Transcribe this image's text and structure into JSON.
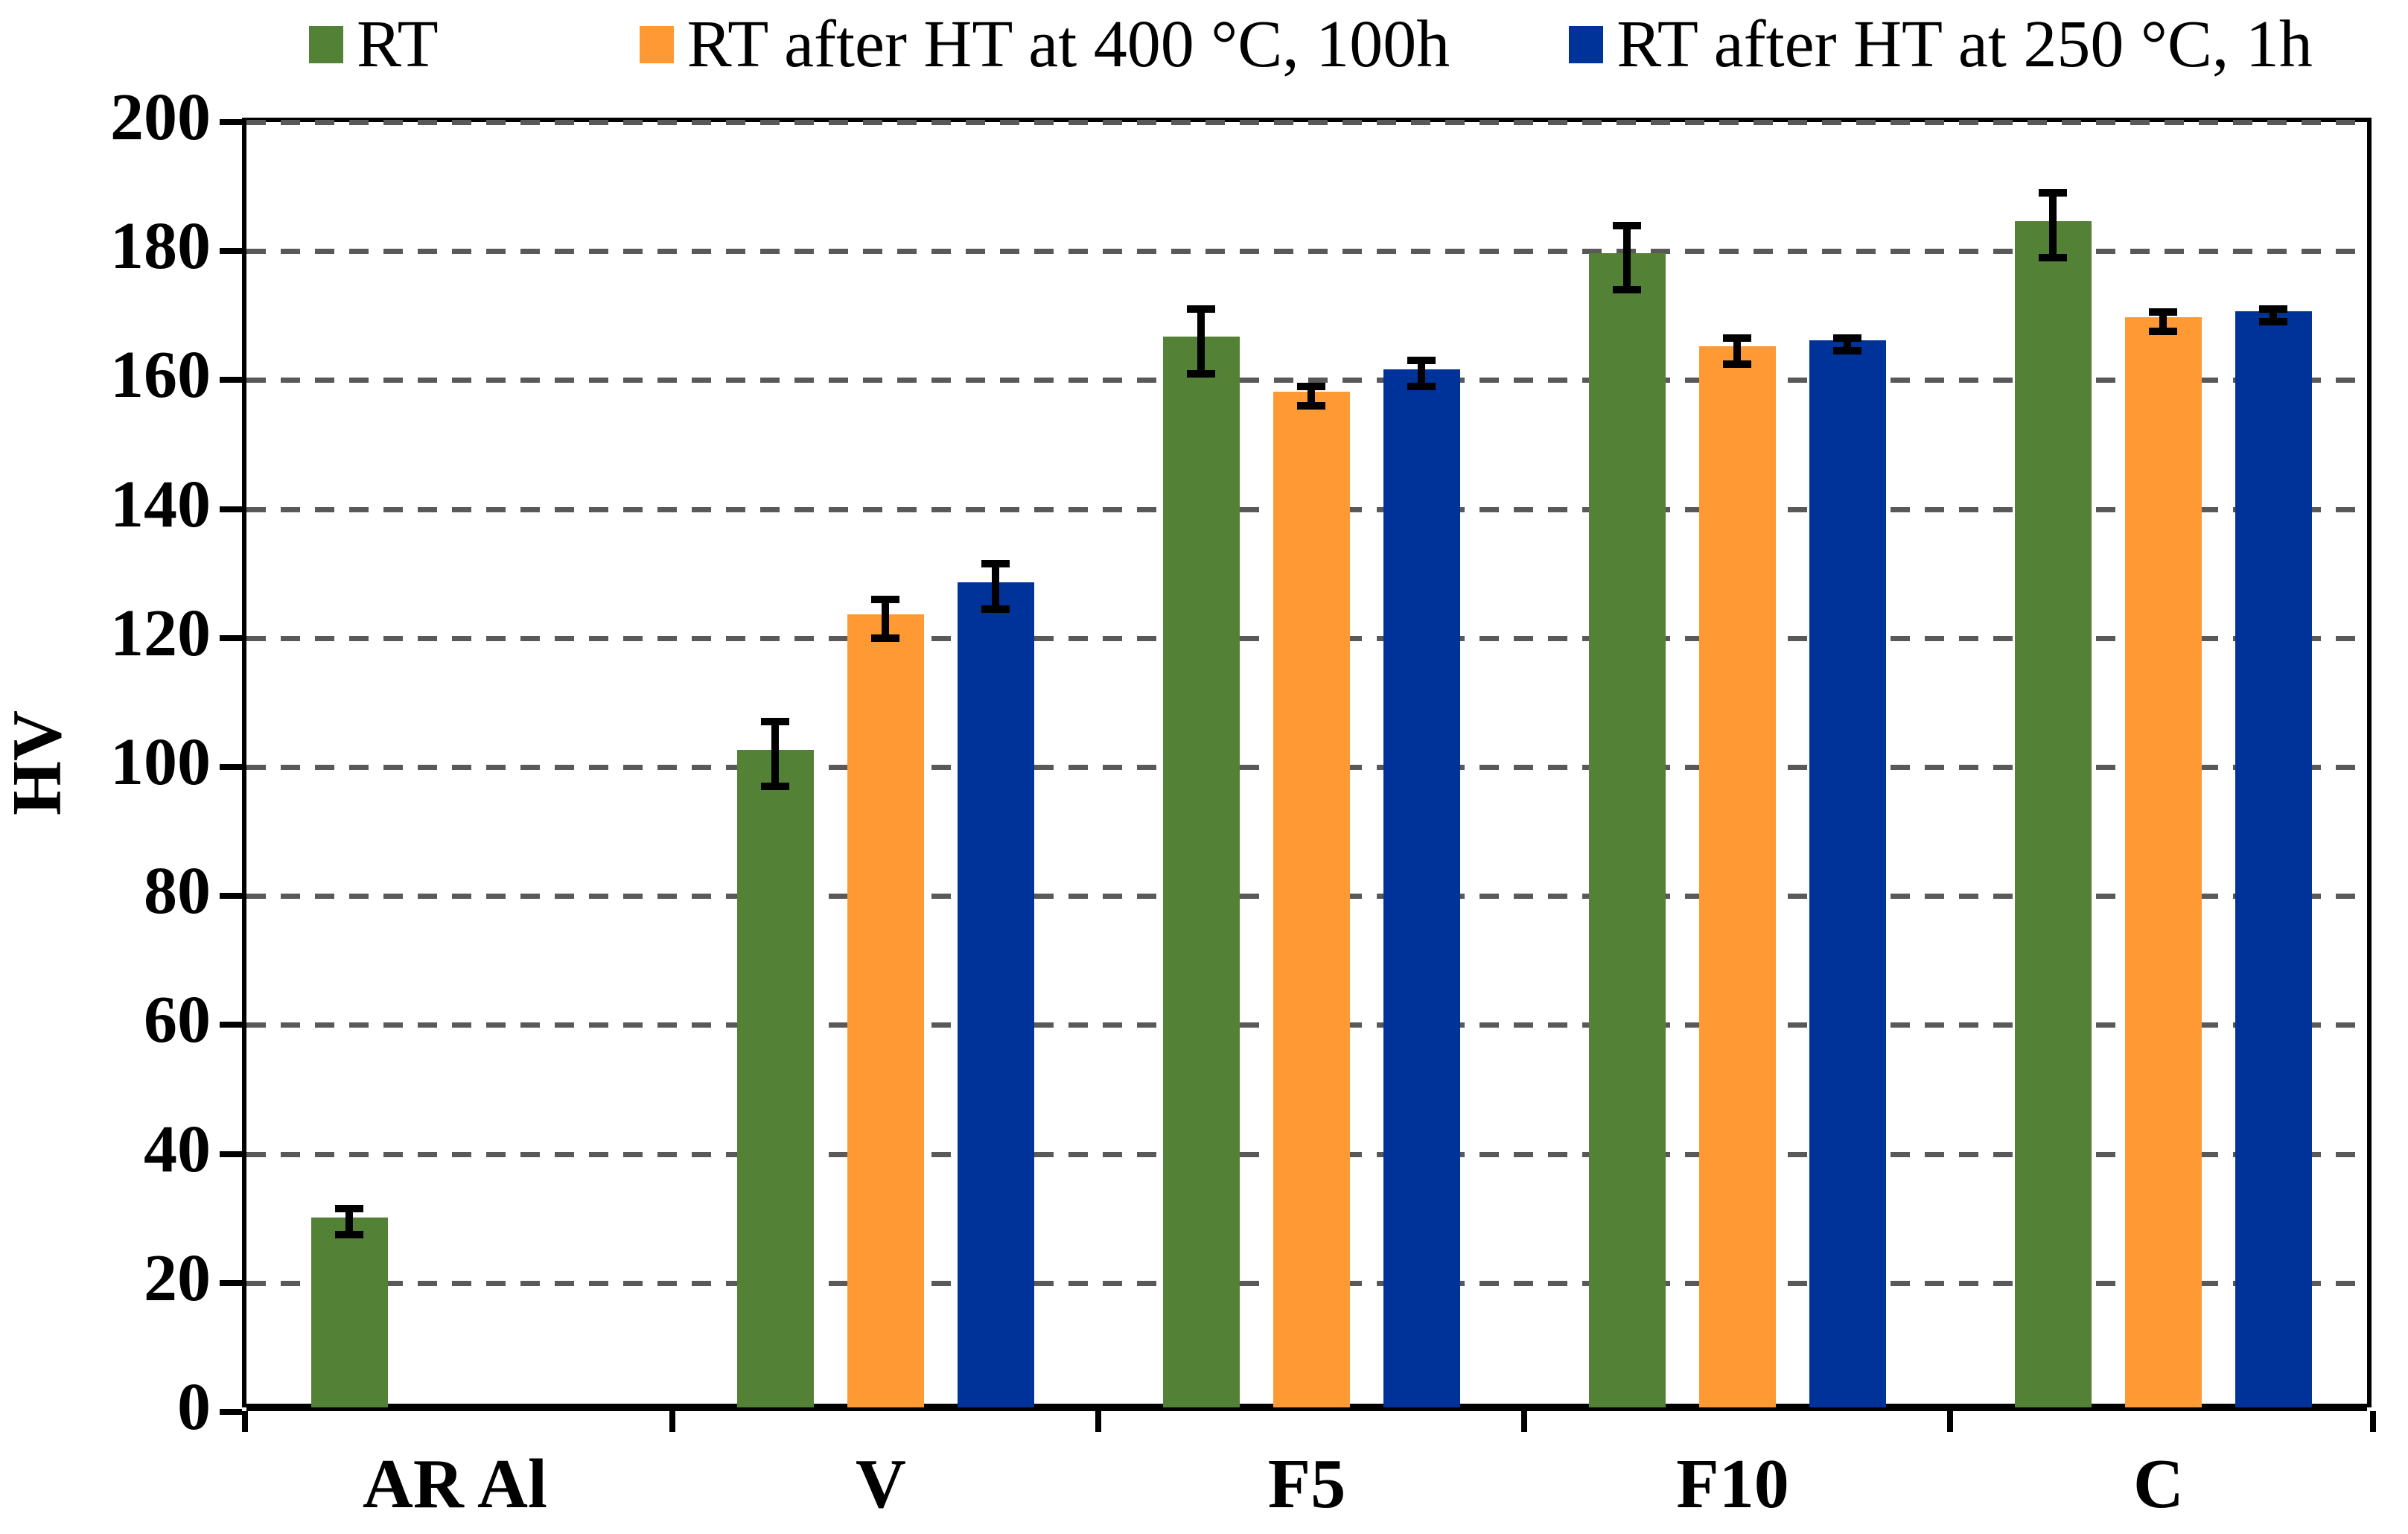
{
  "y_axis": {
    "title": "HV",
    "min": 0,
    "max": 200,
    "step": 20,
    "tick_labels": [
      "0",
      "20",
      "40",
      "60",
      "80",
      "100",
      "120",
      "140",
      "160",
      "180",
      "200"
    ]
  },
  "x_axis": {
    "categories": [
      "AR Al",
      "V",
      "F5",
      "F10",
      "C"
    ]
  },
  "legend": {
    "position": "top",
    "items": [
      {
        "label": "RT",
        "color": "#538135"
      },
      {
        "label": "RT after HT at 400 °C, 100h",
        "color": "#FF9933"
      },
      {
        "label": "RT after HT at 250 °C, 1h",
        "color": "#003399"
      }
    ]
  },
  "colors": {
    "series_green": "#538135",
    "series_orange": "#FF9933",
    "series_blue": "#003399",
    "gridline": "#595959",
    "axis": "#000000",
    "background": "#ffffff"
  },
  "chart_data": {
    "type": "bar",
    "title": "",
    "xlabel": "",
    "ylabel": "HV",
    "ylim": [
      0,
      200
    ],
    "ytick_step": 20,
    "grid": "horizontal-dashed",
    "legend_position": "top",
    "error_bars": true,
    "categories": [
      "AR Al",
      "V",
      "F5",
      "F10",
      "C"
    ],
    "series": [
      {
        "name": "RT",
        "color": "#538135",
        "values": [
          29.5,
          102,
          166,
          179,
          184
        ],
        "errors": [
          2,
          5,
          5,
          5,
          5
        ]
      },
      {
        "name": "RT after HT at 400 °C, 100h",
        "color": "#FF9933",
        "values": [
          null,
          123,
          157.5,
          164.5,
          169
        ],
        "errors": [
          null,
          3,
          1.5,
          2,
          1.5
        ]
      },
      {
        "name": "RT after HT at 250 °C, 1h",
        "color": "#003399",
        "values": [
          null,
          128,
          161,
          165.5,
          170
        ],
        "errors": [
          null,
          3.5,
          2,
          1,
          1
        ]
      }
    ]
  }
}
